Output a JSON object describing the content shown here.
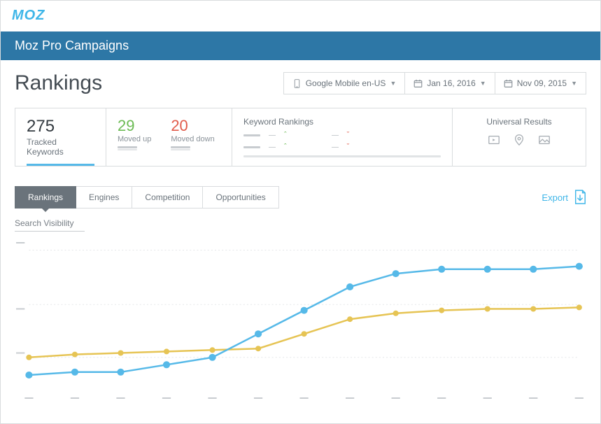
{
  "brand": {
    "logo_text": "MOZ",
    "logo_color": "#3fb6e8"
  },
  "header": {
    "title": "Moz Pro Campaigns",
    "bg": "#2d77a6"
  },
  "page": {
    "heading": "Rankings"
  },
  "filters": {
    "device": "Google Mobile en-US",
    "date_end": "Jan 16, 2016",
    "date_start": "Nov 09, 2015"
  },
  "stats": {
    "tracked": {
      "value": "275",
      "label": "Tracked Keywords"
    },
    "moved_up": {
      "value": "29",
      "label": "Moved up",
      "color": "#6cbb54"
    },
    "moved_down": {
      "value": "20",
      "label": "Moved down",
      "color": "#e15b4a"
    },
    "keyword_rankings_title": "Keyword Rankings",
    "universal_results_title": "Universal Results"
  },
  "tabs": {
    "items": [
      "Rankings",
      "Engines",
      "Competition",
      "Opportunities"
    ],
    "active_index": 0
  },
  "export": {
    "label": "Export"
  },
  "chart": {
    "title": "Search Visibility",
    "type": "line",
    "background_color": "#ffffff",
    "grid_color": "#e5e7e9",
    "ylim": [
      0,
      100
    ],
    "y_ticks": [
      25,
      55,
      100
    ],
    "x_count": 13,
    "series": [
      {
        "name": "blue",
        "color": "#56b9e8",
        "line_width": 2.5,
        "marker_radius": 5,
        "values": [
          10,
          12,
          12,
          17,
          22,
          38,
          54,
          70,
          79,
          82,
          82,
          82,
          84
        ]
      },
      {
        "name": "gold",
        "color": "#e6c454",
        "line_width": 2.5,
        "marker_radius": 4,
        "values": [
          22,
          24,
          25,
          26,
          27,
          28,
          38,
          48,
          52,
          54,
          55,
          55,
          56
        ]
      }
    ]
  }
}
